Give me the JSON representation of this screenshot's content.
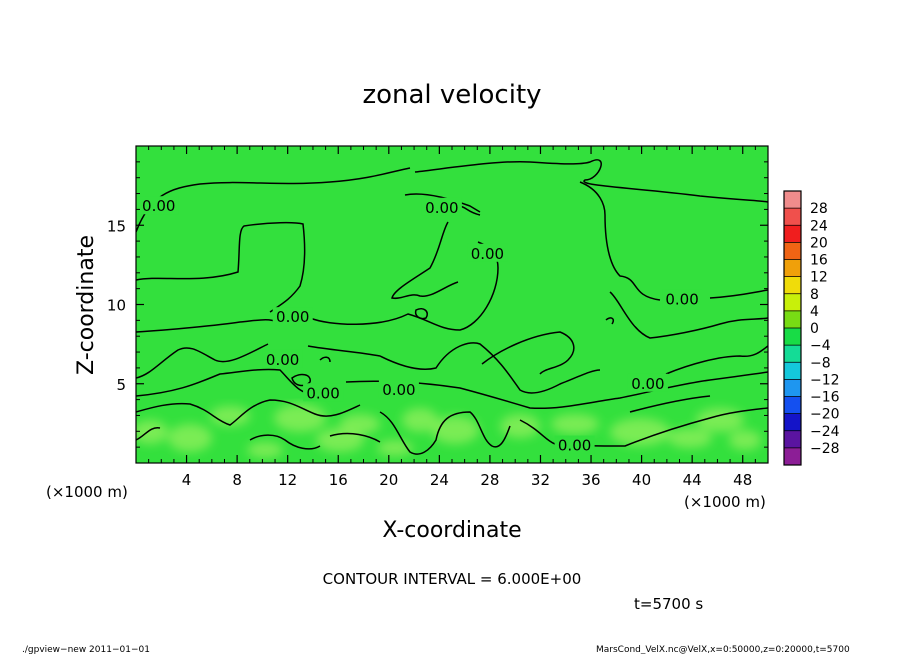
{
  "chart_data": {
    "type": "heatmap",
    "title": "zonal velocity",
    "xlabel": "X-coordinate",
    "ylabel": "Z-coordinate",
    "x_unit": "(×1000 m)",
    "y_unit": "(×1000 m)",
    "xlim": [
      0,
      50
    ],
    "ylim": [
      0,
      20
    ],
    "xticks": [
      4,
      8,
      12,
      16,
      20,
      24,
      28,
      32,
      36,
      40,
      44,
      48
    ],
    "yticks": [
      5,
      10,
      15
    ],
    "contour_interval_text": "CONTOUR INTERVAL = 6.000E+00",
    "time_text": "t=5700 s",
    "contour_labels": [
      {
        "text": "0.00",
        "x": 1.8,
        "y": 16.2
      },
      {
        "text": "0.00",
        "x": 24.2,
        "y": 16.1
      },
      {
        "text": "0.00",
        "x": 27.8,
        "y": 13.2
      },
      {
        "text": "0.00",
        "x": 12.4,
        "y": 9.2
      },
      {
        "text": "0.00",
        "x": 43.2,
        "y": 10.3
      },
      {
        "text": "0.00",
        "x": 11.6,
        "y": 6.5
      },
      {
        "text": "0.00",
        "x": 14.8,
        "y": 4.4
      },
      {
        "text": "0.00",
        "x": 20.8,
        "y": 4.6
      },
      {
        "text": "0.00",
        "x": 40.5,
        "y": 5.0
      },
      {
        "text": "0.00",
        "x": 34.7,
        "y": 1.1
      }
    ],
    "colorbar": {
      "levels": [
        28,
        24,
        20,
        16,
        12,
        8,
        4,
        0,
        -4,
        -8,
        -12,
        -16,
        -20,
        -24,
        -28
      ],
      "labels": [
        "28",
        "24",
        "20",
        "16",
        "12",
        "8",
        "4",
        "0",
        "−4",
        "−8",
        "−12",
        "−16",
        "−20",
        "−24",
        "−28"
      ],
      "colors": [
        "#f08c8c",
        "#f0504c",
        "#f01e1e",
        "#f06414",
        "#f0a00a",
        "#f0dc0a",
        "#c8f00a",
        "#78dc14",
        "#18dc46",
        "#14dc96",
        "#14c8dc",
        "#1e96f0",
        "#1450f0",
        "#1414c8",
        "#5a14a0",
        "#8c1e96"
      ]
    },
    "field_colors": {
      "base": "#33e03d",
      "light": "#8cef5a",
      "mid": "#62e64a"
    }
  },
  "footer": {
    "left": "./gpview−new   2011−01−01",
    "right": "MarsCond_VelX.nc@VelX,x=0:50000,z=0:20000,t=5700"
  }
}
